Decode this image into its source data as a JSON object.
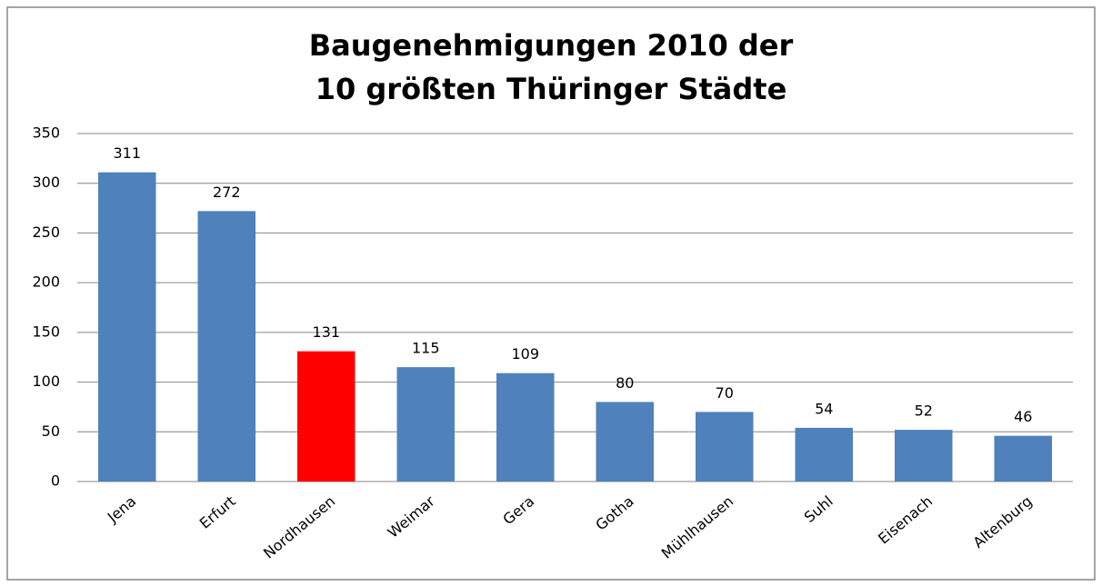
{
  "chart_data": {
    "type": "bar",
    "title": [
      "Baugenehmigungen 2010 der",
      "10 größten Thüringer Städte"
    ],
    "categories": [
      "Jena",
      "Erfurt",
      "Nordhausen",
      "Weimar",
      "Gera",
      "Gotha",
      "Mühlhausen",
      "Suhl",
      "Eisenach",
      "Altenburg"
    ],
    "values": [
      311,
      272,
      131,
      115,
      109,
      80,
      70,
      54,
      52,
      46
    ],
    "colors": [
      "#4f81bd",
      "#4f81bd",
      "#ff0000",
      "#4f81bd",
      "#4f81bd",
      "#4f81bd",
      "#4f81bd",
      "#4f81bd",
      "#4f81bd",
      "#4f81bd"
    ],
    "ylim": [
      0,
      350
    ],
    "yticks": [
      0,
      50,
      100,
      150,
      200,
      250,
      300,
      350
    ],
    "grid": true,
    "data_labels": true
  }
}
